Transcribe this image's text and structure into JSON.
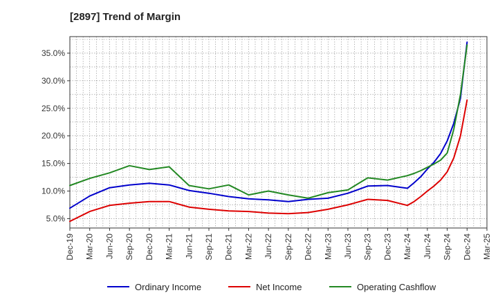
{
  "chart_data": {
    "type": "line",
    "title": "[2897]  Trend of Margin",
    "xlabel": "",
    "ylabel": "",
    "x": [
      "Dec-19",
      "Jan-20",
      "Feb-20",
      "Mar-20",
      "Apr-20",
      "May-20",
      "Jun-20",
      "Jul-20",
      "Aug-20",
      "Sep-20",
      "Oct-20",
      "Nov-20",
      "Dec-20",
      "Jan-21",
      "Feb-21",
      "Mar-21",
      "Apr-21",
      "May-21",
      "Jun-21",
      "Jul-21",
      "Aug-21",
      "Sep-21",
      "Oct-21",
      "Nov-21",
      "Dec-21",
      "Jan-22",
      "Feb-22",
      "Mar-22",
      "Apr-22",
      "May-22",
      "Jun-22",
      "Jul-22",
      "Aug-22",
      "Sep-22",
      "Oct-22",
      "Nov-22",
      "Dec-22",
      "Jan-23",
      "Feb-23",
      "Mar-23",
      "Apr-23",
      "May-23",
      "Jun-23",
      "Jul-23",
      "Aug-23",
      "Sep-23",
      "Oct-23",
      "Nov-23",
      "Dec-23",
      "Jan-24",
      "Feb-24",
      "Mar-24",
      "Apr-24",
      "May-24",
      "Jun-24",
      "Jul-24",
      "Aug-24",
      "Sep-24",
      "Oct-24",
      "Nov-24",
      "Dec-24"
    ],
    "x_tick_labels": [
      "Dec-19",
      "Mar-20",
      "Jun-20",
      "Sep-20",
      "Dec-20",
      "Mar-21",
      "Jun-21",
      "Sep-21",
      "Dec-21",
      "Mar-22",
      "Jun-22",
      "Sep-22",
      "Dec-22",
      "Mar-23",
      "Jun-23",
      "Sep-23",
      "Dec-23",
      "Mar-24",
      "Jun-24",
      "Sep-24",
      "Dec-24",
      "Mar-25"
    ],
    "y_ticks": [
      5,
      10,
      15,
      20,
      25,
      30,
      35
    ],
    "y_tick_labels": [
      "5.0%",
      "10.0%",
      "15.0%",
      "20.0%",
      "25.0%",
      "30.0%",
      "35.0%"
    ],
    "ylim": [
      3.3,
      38.0
    ],
    "xlim_months": [
      0,
      63
    ],
    "grid": true,
    "legend_position": "bottom",
    "series": [
      {
        "name": "Ordinary Income",
        "color": "#0000cc",
        "points": [
          [
            0,
            6.9
          ],
          [
            3,
            9.1
          ],
          [
            6,
            10.6
          ],
          [
            9,
            11.1
          ],
          [
            12,
            11.4
          ],
          [
            15,
            11.1
          ],
          [
            18,
            10.1
          ],
          [
            21,
            9.6
          ],
          [
            24,
            9.0
          ],
          [
            27,
            8.6
          ],
          [
            30,
            8.4
          ],
          [
            33,
            8.1
          ],
          [
            36,
            8.5
          ],
          [
            39,
            8.7
          ],
          [
            42,
            9.6
          ],
          [
            45,
            10.9
          ],
          [
            48,
            11.0
          ],
          [
            51,
            10.5
          ],
          [
            52,
            11.5
          ],
          [
            53,
            12.6
          ],
          [
            54,
            14.0
          ],
          [
            55,
            15.2
          ],
          [
            56,
            16.8
          ],
          [
            57,
            19.1
          ],
          [
            58,
            22.3
          ],
          [
            59,
            26.8
          ],
          [
            60,
            37.0
          ]
        ]
      },
      {
        "name": "Net Income",
        "color": "#dd0000",
        "points": [
          [
            0,
            4.5
          ],
          [
            3,
            6.3
          ],
          [
            6,
            7.4
          ],
          [
            9,
            7.8
          ],
          [
            12,
            8.1
          ],
          [
            15,
            8.1
          ],
          [
            18,
            7.1
          ],
          [
            21,
            6.7
          ],
          [
            24,
            6.4
          ],
          [
            27,
            6.3
          ],
          [
            30,
            6.0
          ],
          [
            33,
            5.9
          ],
          [
            36,
            6.1
          ],
          [
            39,
            6.7
          ],
          [
            42,
            7.5
          ],
          [
            45,
            8.5
          ],
          [
            48,
            8.3
          ],
          [
            51,
            7.4
          ],
          [
            52,
            8.1
          ],
          [
            53,
            9.0
          ],
          [
            54,
            10.0
          ],
          [
            55,
            10.9
          ],
          [
            56,
            12.0
          ],
          [
            57,
            13.5
          ],
          [
            58,
            16.0
          ],
          [
            59,
            20.0
          ],
          [
            60,
            26.5
          ]
        ]
      },
      {
        "name": "Operating Cashflow",
        "color": "#228822",
        "points": [
          [
            0,
            11.0
          ],
          [
            3,
            12.3
          ],
          [
            6,
            13.3
          ],
          [
            9,
            14.6
          ],
          [
            12,
            13.9
          ],
          [
            15,
            14.4
          ],
          [
            18,
            11.0
          ],
          [
            21,
            10.4
          ],
          [
            24,
            11.1
          ],
          [
            27,
            9.3
          ],
          [
            30,
            10.0
          ],
          [
            33,
            9.3
          ],
          [
            36,
            8.7
          ],
          [
            39,
            9.7
          ],
          [
            42,
            10.2
          ],
          [
            45,
            12.4
          ],
          [
            48,
            12.0
          ],
          [
            51,
            12.8
          ],
          [
            52,
            13.2
          ],
          [
            53,
            13.7
          ],
          [
            54,
            14.3
          ],
          [
            55,
            14.9
          ],
          [
            56,
            15.6
          ],
          [
            57,
            16.9
          ],
          [
            58,
            21.2
          ],
          [
            59,
            27.5
          ],
          [
            60,
            36.5
          ]
        ]
      }
    ]
  }
}
